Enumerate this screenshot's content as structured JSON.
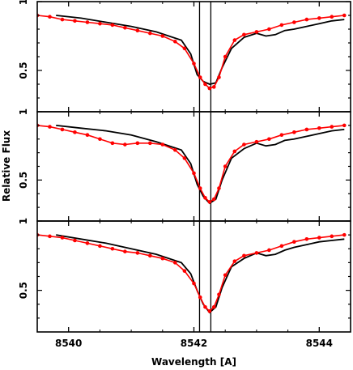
{
  "chart_data": {
    "type": "line",
    "xlabel": "Wavelength [A]",
    "ylabel": "Relative Flux",
    "xlim": [
      8539.5,
      8544.5
    ],
    "ylim": [
      0.2,
      1.0
    ],
    "x_ticks": [
      8540,
      8542,
      8544
    ],
    "y_ticks": [
      0.5,
      1
    ],
    "vertical_lines": [
      8542.09,
      8542.27
    ],
    "panels": [
      {
        "series": [
          {
            "style": "black-line",
            "x": [
              8539.8,
              8540.2,
              8540.6,
              8541.0,
              8541.4,
              8541.8,
              8541.95,
              8542.05,
              8542.15,
              8542.25,
              8542.35,
              8542.45,
              8542.6,
              8542.8,
              8543.0,
              8543.15,
              8543.3,
              8543.45,
              8543.6,
              8543.8,
              8544.0,
              8544.2,
              8544.4
            ],
            "y": [
              0.9,
              0.88,
              0.85,
              0.82,
              0.78,
              0.72,
              0.62,
              0.47,
              0.42,
              0.4,
              0.41,
              0.52,
              0.66,
              0.74,
              0.77,
              0.75,
              0.76,
              0.79,
              0.8,
              0.82,
              0.84,
              0.86,
              0.87
            ]
          },
          {
            "style": "red-dots",
            "x": [
              8539.5,
              8539.7,
              8539.9,
              8540.1,
              8540.3,
              8540.5,
              8540.7,
              8540.9,
              8541.1,
              8541.3,
              8541.5,
              8541.7,
              8541.85,
              8542.0,
              8542.1,
              8542.18,
              8542.25,
              8542.32,
              8542.4,
              8542.5,
              8542.65,
              8542.8,
              8543.0,
              8543.2,
              8543.4,
              8543.6,
              8543.8,
              8544.0,
              8544.2,
              8544.4
            ],
            "y": [
              0.9,
              0.89,
              0.87,
              0.86,
              0.85,
              0.84,
              0.83,
              0.81,
              0.79,
              0.77,
              0.75,
              0.71,
              0.66,
              0.55,
              0.45,
              0.4,
              0.37,
              0.38,
              0.45,
              0.6,
              0.72,
              0.76,
              0.78,
              0.8,
              0.83,
              0.85,
              0.87,
              0.88,
              0.89,
              0.9
            ]
          }
        ]
      },
      {
        "series": [
          {
            "style": "black-line",
            "x": [
              8539.8,
              8540.2,
              8540.6,
              8541.0,
              8541.4,
              8541.8,
              8541.95,
              8542.05,
              8542.15,
              8542.25,
              8542.35,
              8542.45,
              8542.6,
              8542.8,
              8543.0,
              8543.15,
              8543.3,
              8543.45,
              8543.6,
              8543.8,
              8544.0,
              8544.2,
              8544.4
            ],
            "y": [
              0.9,
              0.88,
              0.86,
              0.83,
              0.78,
              0.72,
              0.62,
              0.47,
              0.38,
              0.33,
              0.36,
              0.5,
              0.66,
              0.73,
              0.77,
              0.75,
              0.76,
              0.79,
              0.8,
              0.82,
              0.84,
              0.86,
              0.87
            ]
          },
          {
            "style": "red-dots",
            "x": [
              8539.5,
              8539.7,
              8539.9,
              8540.1,
              8540.3,
              8540.5,
              8540.7,
              8540.9,
              8541.1,
              8541.3,
              8541.5,
              8541.7,
              8541.85,
              8542.0,
              8542.1,
              8542.18,
              8542.25,
              8542.32,
              8542.4,
              8542.5,
              8542.65,
              8542.8,
              8543.0,
              8543.2,
              8543.4,
              8543.6,
              8543.8,
              8544.0,
              8544.2,
              8544.4
            ],
            "y": [
              0.9,
              0.89,
              0.87,
              0.85,
              0.83,
              0.8,
              0.77,
              0.76,
              0.77,
              0.77,
              0.76,
              0.72,
              0.66,
              0.55,
              0.44,
              0.37,
              0.34,
              0.36,
              0.44,
              0.6,
              0.71,
              0.76,
              0.78,
              0.8,
              0.83,
              0.85,
              0.87,
              0.88,
              0.89,
              0.9
            ]
          }
        ]
      },
      {
        "series": [
          {
            "style": "black-line",
            "x": [
              8539.8,
              8540.2,
              8540.6,
              8541.0,
              8541.4,
              8541.8,
              8541.95,
              8542.05,
              8542.15,
              8542.25,
              8542.35,
              8542.45,
              8542.6,
              8542.8,
              8543.0,
              8543.15,
              8543.3,
              8543.45,
              8543.6,
              8543.8,
              8544.0,
              8544.2,
              8544.4
            ],
            "y": [
              0.9,
              0.87,
              0.84,
              0.8,
              0.76,
              0.7,
              0.62,
              0.5,
              0.4,
              0.34,
              0.38,
              0.52,
              0.67,
              0.73,
              0.77,
              0.75,
              0.76,
              0.79,
              0.81,
              0.83,
              0.85,
              0.86,
              0.87
            ]
          },
          {
            "style": "red-dots",
            "x": [
              8539.5,
              8539.7,
              8539.9,
              8540.1,
              8540.3,
              8540.5,
              8540.7,
              8540.9,
              8541.1,
              8541.3,
              8541.5,
              8541.7,
              8541.85,
              8542.0,
              8542.1,
              8542.18,
              8542.25,
              8542.32,
              8542.4,
              8542.5,
              8542.65,
              8542.8,
              8543.0,
              8543.2,
              8543.4,
              8543.6,
              8543.8,
              8544.0,
              8544.2,
              8544.4
            ],
            "y": [
              0.9,
              0.89,
              0.88,
              0.86,
              0.84,
              0.82,
              0.8,
              0.78,
              0.77,
              0.75,
              0.73,
              0.7,
              0.64,
              0.55,
              0.45,
              0.38,
              0.35,
              0.38,
              0.47,
              0.61,
              0.71,
              0.75,
              0.77,
              0.79,
              0.82,
              0.85,
              0.87,
              0.88,
              0.89,
              0.9
            ]
          }
        ]
      }
    ]
  },
  "colors": {
    "model": "#000000",
    "observed": "#ff0000"
  }
}
